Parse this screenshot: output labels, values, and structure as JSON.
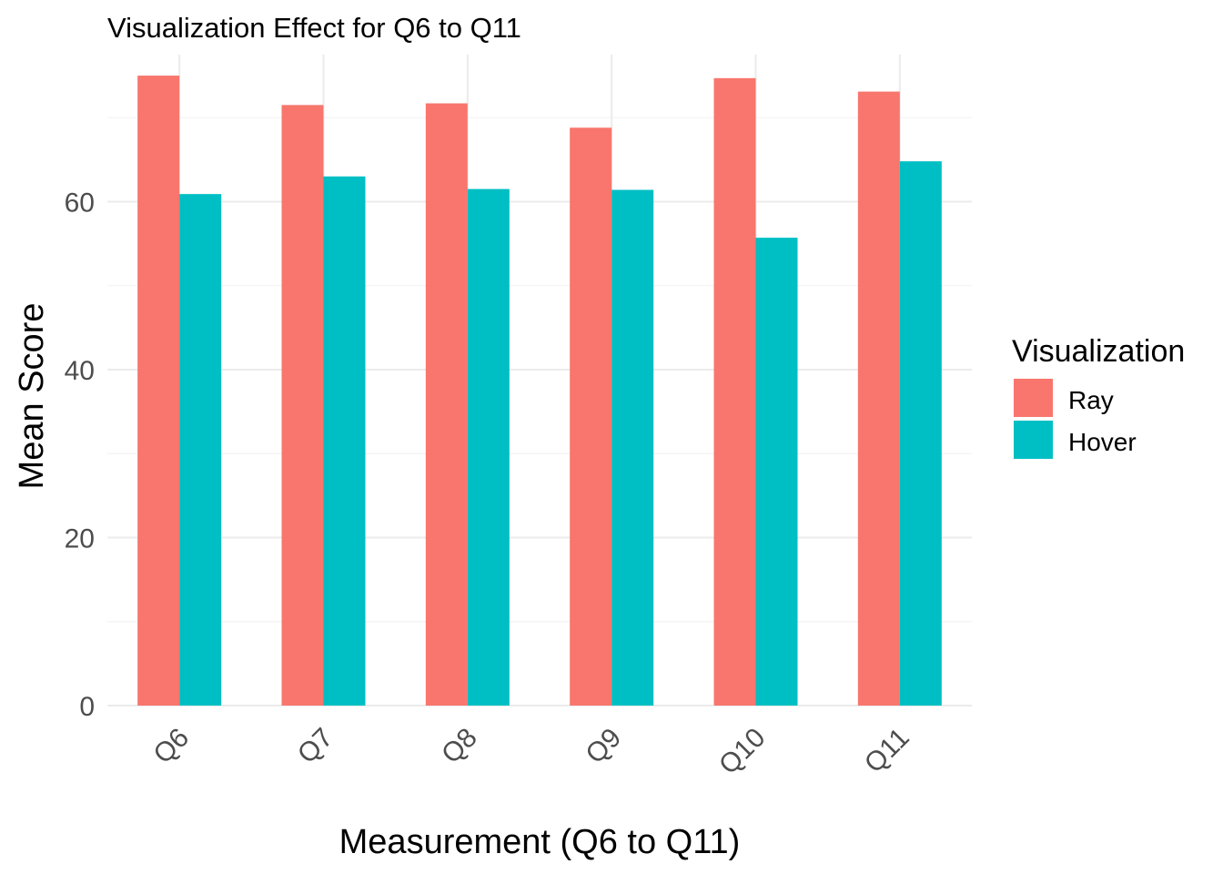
{
  "chart_data": {
    "type": "bar",
    "title": "Visualization Effect for Q6 to Q11",
    "xlabel": "Measurement (Q6 to Q11)",
    "ylabel": "Mean Score",
    "categories": [
      "Q6",
      "Q7",
      "Q8",
      "Q9",
      "Q10",
      "Q11"
    ],
    "series": [
      {
        "name": "Ray",
        "values": [
          75.0,
          71.5,
          71.7,
          68.8,
          74.7,
          73.1
        ],
        "color": "#F8766D"
      },
      {
        "name": "Hover",
        "values": [
          60.9,
          63.0,
          61.5,
          61.4,
          55.7,
          64.8
        ],
        "color": "#00BFC4"
      }
    ],
    "yticks": [
      0,
      20,
      40,
      60
    ],
    "ylim": [
      0,
      77.5
    ],
    "legend": {
      "title": "Visualization",
      "placement": "right"
    },
    "grid": true
  }
}
